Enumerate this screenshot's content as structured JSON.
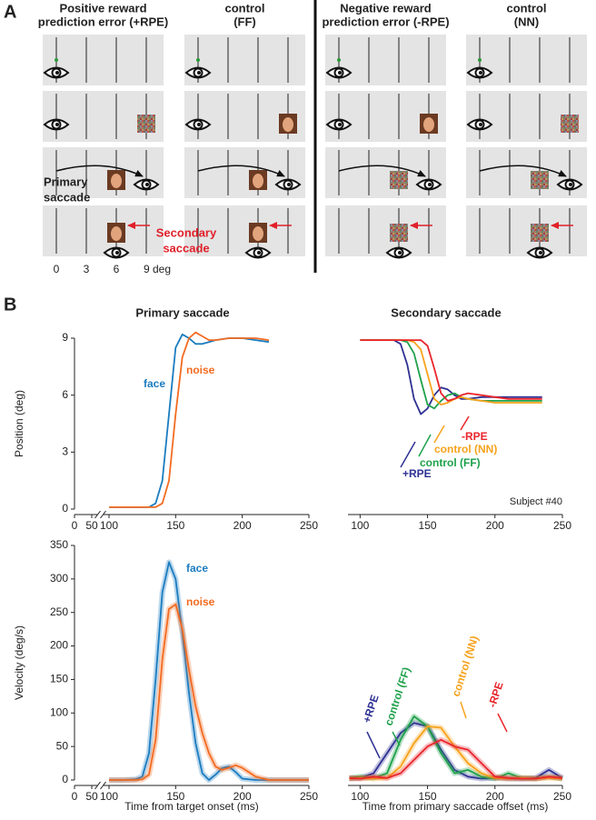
{
  "panel_a": {
    "label": "A",
    "columns": [
      {
        "title": [
          "Positive reward",
          "prediction error (+RPE)"
        ]
      },
      {
        "title": [
          "control",
          "(FF)"
        ]
      },
      {
        "title": [
          "Negative reward",
          "prediction error (-RPE)"
        ]
      },
      {
        "title": [
          "control",
          "(NN)"
        ]
      }
    ],
    "primary_label": [
      "Primary",
      "saccade"
    ],
    "secondary_label": [
      "Secondary",
      "saccade"
    ],
    "axis_labels": [
      "0",
      "3",
      "6",
      "9 deg"
    ]
  },
  "panel_b": {
    "label": "B"
  },
  "chart_data": [
    {
      "type": "line",
      "title": "Primary saccade",
      "y_label": "Position (deg)",
      "x": [
        100,
        110,
        120,
        130,
        135,
        140,
        145,
        150,
        155,
        160,
        165,
        170,
        175,
        180,
        190,
        200,
        210,
        220
      ],
      "series": [
        {
          "name": "face",
          "color": "#1b7cc0",
          "values": [
            0.1,
            0.1,
            0.1,
            0.1,
            0.3,
            1.5,
            5,
            8.5,
            9.2,
            9.0,
            8.7,
            8.7,
            8.8,
            8.9,
            9.0,
            9.0,
            8.9,
            8.8
          ]
        },
        {
          "name": "noise",
          "color": "#f26b21",
          "values": [
            0.1,
            0.1,
            0.1,
            0.1,
            0.1,
            0.3,
            1.5,
            5,
            8,
            9.0,
            9.3,
            9.1,
            8.9,
            8.9,
            9.0,
            9.0,
            9.0,
            8.9
          ]
        }
      ],
      "xlim": [
        0,
        250
      ],
      "xticks": [
        0,
        50,
        100,
        150,
        200,
        250
      ],
      "xbreak": 100,
      "ylim": [
        0,
        9
      ],
      "yticks": [
        0,
        3,
        6,
        9
      ]
    },
    {
      "type": "line",
      "title": "Secondary saccade",
      "note": "Subject #40",
      "x": [
        100,
        110,
        120,
        125,
        130,
        135,
        140,
        145,
        150,
        155,
        160,
        165,
        170,
        175,
        180,
        190,
        200,
        210,
        220,
        235
      ],
      "series": [
        {
          "name": "+RPE",
          "color": "#2e3192",
          "values": [
            8.9,
            8.9,
            8.9,
            8.9,
            8.7,
            7.6,
            5.8,
            5.0,
            5.3,
            6.0,
            6.4,
            6.3,
            6.0,
            5.8,
            5.8,
            5.9,
            5.9,
            5.9,
            5.9,
            5.9
          ]
        },
        {
          "name": "control (FF)",
          "color": "#1fa14b",
          "values": [
            8.9,
            8.9,
            8.9,
            8.9,
            8.9,
            8.8,
            8.2,
            6.8,
            5.5,
            5.3,
            5.7,
            6.0,
            6.1,
            5.9,
            5.8,
            5.7,
            5.7,
            5.7,
            5.7,
            5.7
          ]
        },
        {
          "name": "control (NN)",
          "color": "#f7a21b",
          "values": [
            8.9,
            8.9,
            8.9,
            8.9,
            8.9,
            8.9,
            8.8,
            8.4,
            7.1,
            5.8,
            5.5,
            5.6,
            5.8,
            5.9,
            5.8,
            5.7,
            5.6,
            5.6,
            5.6,
            5.6
          ]
        },
        {
          "name": "-RPE",
          "color": "#e9252b",
          "values": [
            8.9,
            8.9,
            8.9,
            8.9,
            8.9,
            8.9,
            8.9,
            8.9,
            8.6,
            7.4,
            6.1,
            5.7,
            5.8,
            6.0,
            6.1,
            6.0,
            5.9,
            5.8,
            5.8,
            5.8
          ]
        }
      ],
      "xlim": [
        91,
        250
      ],
      "xticks": [
        100,
        150,
        200,
        250
      ],
      "ylim": [
        0,
        9
      ]
    },
    {
      "type": "line",
      "x_label": "Time from target onset (ms)",
      "y_label": "Velocity (deg/s)",
      "band": true,
      "x": [
        100,
        110,
        120,
        125,
        130,
        135,
        140,
        145,
        150,
        155,
        160,
        165,
        170,
        175,
        180,
        185,
        190,
        195,
        200,
        210,
        220,
        230,
        250
      ],
      "series": [
        {
          "name": "face",
          "color": "#1b7cc0",
          "values": [
            0,
            0,
            1,
            5,
            40,
            150,
            280,
            325,
            300,
            220,
            130,
            55,
            10,
            0,
            8,
            18,
            20,
            12,
            2,
            0,
            0,
            0,
            0
          ]
        },
        {
          "name": "noise",
          "color": "#f26b21",
          "values": [
            0,
            0,
            0,
            1,
            8,
            60,
            180,
            255,
            262,
            225,
            165,
            110,
            70,
            40,
            20,
            15,
            18,
            22,
            18,
            5,
            0,
            0,
            0
          ]
        }
      ],
      "xlim": [
        0,
        250
      ],
      "xticks": [
        0,
        50,
        100,
        150,
        200,
        250
      ],
      "xbreak": 100,
      "ylim": [
        0,
        350
      ],
      "yticks": [
        0,
        50,
        100,
        150,
        200,
        250,
        300,
        350
      ]
    },
    {
      "type": "line",
      "x_label": "Time from primary saccade offset (ms)",
      "band": true,
      "x": [
        92,
        100,
        110,
        120,
        130,
        140,
        150,
        160,
        170,
        180,
        190,
        200,
        210,
        220,
        230,
        240,
        250
      ],
      "series": [
        {
          "name": "+RPE",
          "color": "#2e3192",
          "values": [
            2,
            3,
            10,
            40,
            70,
            85,
            80,
            45,
            15,
            5,
            2,
            3,
            2,
            2,
            3,
            15,
            3
          ]
        },
        {
          "name": "control (FF)",
          "color": "#1fa14b",
          "values": [
            3,
            5,
            3,
            10,
            60,
            95,
            80,
            40,
            10,
            15,
            5,
            2,
            10,
            3,
            2,
            5,
            2
          ]
        },
        {
          "name": "control (NN)",
          "color": "#f7a21b",
          "values": [
            2,
            3,
            2,
            3,
            20,
            55,
            80,
            78,
            50,
            25,
            10,
            3,
            2,
            3,
            2,
            3,
            2
          ]
        },
        {
          "name": "-RPE",
          "color": "#e9252b",
          "values": [
            3,
            2,
            5,
            3,
            10,
            30,
            50,
            60,
            50,
            45,
            25,
            5,
            3,
            2,
            2,
            5,
            3
          ]
        }
      ],
      "xlim": [
        91,
        250
      ],
      "xticks": [
        100,
        150,
        200,
        250
      ],
      "ylim": [
        0,
        350
      ]
    }
  ]
}
